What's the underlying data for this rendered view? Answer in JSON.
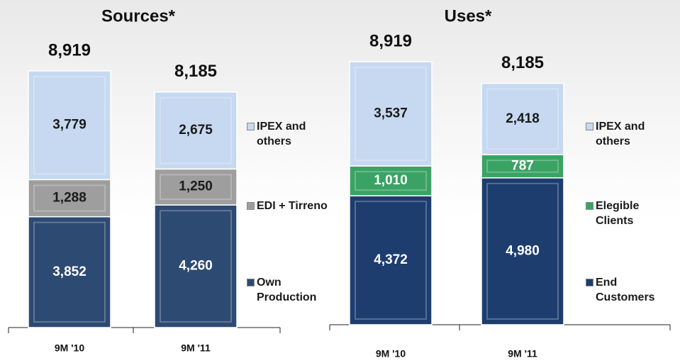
{
  "chart_data": [
    {
      "type": "stacked_bar",
      "title": "Sources*",
      "categories": [
        "9M '10",
        "9M '11"
      ],
      "series": [
        {
          "name": "Own Production",
          "color": "#2d4a72",
          "values": [
            3852,
            4260
          ],
          "value_labels": [
            "3,852",
            "4,260"
          ]
        },
        {
          "name": "EDI + Tirreno",
          "color": "#9e9e9e",
          "values": [
            1288,
            1250
          ],
          "value_labels": [
            "1,288",
            "1,250"
          ]
        },
        {
          "name": "IPEX and others",
          "color": "#c6d9f1",
          "values": [
            3779,
            2675
          ],
          "value_labels": [
            "3,779",
            "2,675"
          ]
        }
      ],
      "totals": [
        8919,
        8185
      ],
      "total_labels": [
        "8,919",
        "8,185"
      ]
    },
    {
      "type": "stacked_bar",
      "title": "Uses*",
      "categories": [
        "9M '10",
        "9M '11"
      ],
      "series": [
        {
          "name": "End Customers",
          "color": "#1d3d6f",
          "values": [
            4372,
            4980
          ],
          "value_labels": [
            "4,372",
            "4,980"
          ]
        },
        {
          "name": "Elegible Clients",
          "color": "#3aa364",
          "values": [
            1010,
            787
          ],
          "value_labels": [
            "1,010",
            "787"
          ]
        },
        {
          "name": "IPEX and others",
          "color": "#c6d9f1",
          "values": [
            3537,
            2418
          ],
          "value_labels": [
            "3,537",
            "2,418"
          ]
        }
      ],
      "totals": [
        8919,
        8185
      ],
      "total_labels": [
        "8,919",
        "8,185"
      ]
    }
  ]
}
